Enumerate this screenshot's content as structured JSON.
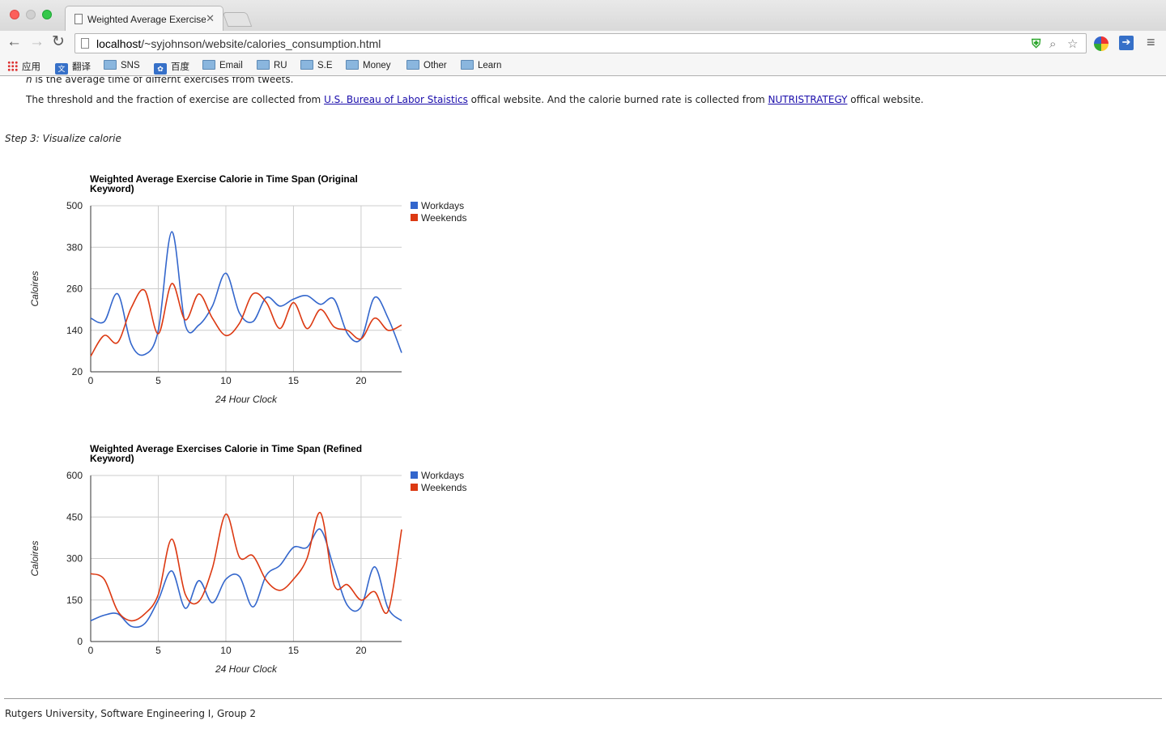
{
  "browser": {
    "tab_title": "Weighted Average Exercise Calorie in Time Span",
    "url_host": "localhost",
    "url_path": "/~syjohnson/website/calories_consumption.html",
    "bookmarks": [
      "应用",
      "翻译",
      "SNS",
      "百度",
      "Email",
      "RU",
      "S.E",
      "Money",
      "Other",
      "Learn"
    ]
  },
  "content": {
    "intro_italic": "n",
    "intro_rest": " is the average time of differnt exercises from tweets.",
    "threshold_pre": "The threshold and the fraction of exercise are collected from ",
    "threshold_link1": "U.S. Bureau of Labor Staistics",
    "threshold_mid": " offical website. And the calorie burned rate is collected from ",
    "threshold_link2": "NUTRISTRATEGY",
    "threshold_post": " offical website.",
    "step3": "Step 3: Visualize calorie",
    "footer": "Rutgers University, Software Engineering I, Group 2"
  },
  "chart_data": [
    {
      "type": "line",
      "title": "Weighted Average Exercise Calorie in Time Span (Original Keyword)",
      "xlabel": "24 Hour Clock",
      "ylabel": "Caloires",
      "ylim": [
        20,
        500
      ],
      "xlim": [
        0,
        23
      ],
      "xticks": [
        0,
        5,
        10,
        15,
        20
      ],
      "yticks": [
        20,
        140,
        260,
        380,
        500
      ],
      "legend": "right",
      "x": [
        0,
        1,
        2,
        3,
        4,
        5,
        6,
        7,
        8,
        9,
        10,
        11,
        12,
        13,
        14,
        15,
        16,
        17,
        18,
        19,
        20,
        21,
        22,
        23
      ],
      "series": [
        {
          "name": "Workdays",
          "color": "#3366cc",
          "values": [
            175,
            165,
            245,
            100,
            70,
            140,
            425,
            155,
            155,
            210,
            305,
            190,
            165,
            235,
            210,
            230,
            240,
            215,
            230,
            130,
            115,
            235,
            175,
            75
          ]
        },
        {
          "name": "Weekends",
          "color": "#dc3912",
          "values": [
            65,
            125,
            105,
            205,
            255,
            130,
            275,
            170,
            245,
            175,
            125,
            160,
            245,
            220,
            145,
            220,
            145,
            200,
            150,
            140,
            115,
            175,
            140,
            155
          ]
        }
      ]
    },
    {
      "type": "line",
      "title": "Weighted Average Exercises Calorie in Time Span (Refined Keyword)",
      "xlabel": "24 Hour Clock",
      "ylabel": "Caloires",
      "ylim": [
        0,
        600
      ],
      "xlim": [
        0,
        23
      ],
      "xticks": [
        0,
        5,
        10,
        15,
        20
      ],
      "yticks": [
        0,
        150,
        300,
        450,
        600
      ],
      "legend": "right",
      "x": [
        0,
        1,
        2,
        3,
        4,
        5,
        6,
        7,
        8,
        9,
        10,
        11,
        12,
        13,
        14,
        15,
        16,
        17,
        18,
        19,
        20,
        21,
        22,
        23
      ],
      "series": [
        {
          "name": "Workdays",
          "color": "#3366cc",
          "values": [
            75,
            95,
            100,
            55,
            65,
            150,
            255,
            120,
            220,
            140,
            225,
            235,
            125,
            240,
            275,
            340,
            340,
            405,
            265,
            130,
            125,
            270,
            120,
            75
          ]
        },
        {
          "name": "Weekends",
          "color": "#dc3912",
          "values": [
            245,
            225,
            110,
            75,
            100,
            170,
            370,
            170,
            145,
            265,
            460,
            305,
            310,
            220,
            185,
            225,
            300,
            465,
            205,
            205,
            150,
            180,
            110,
            405
          ]
        }
      ]
    }
  ]
}
